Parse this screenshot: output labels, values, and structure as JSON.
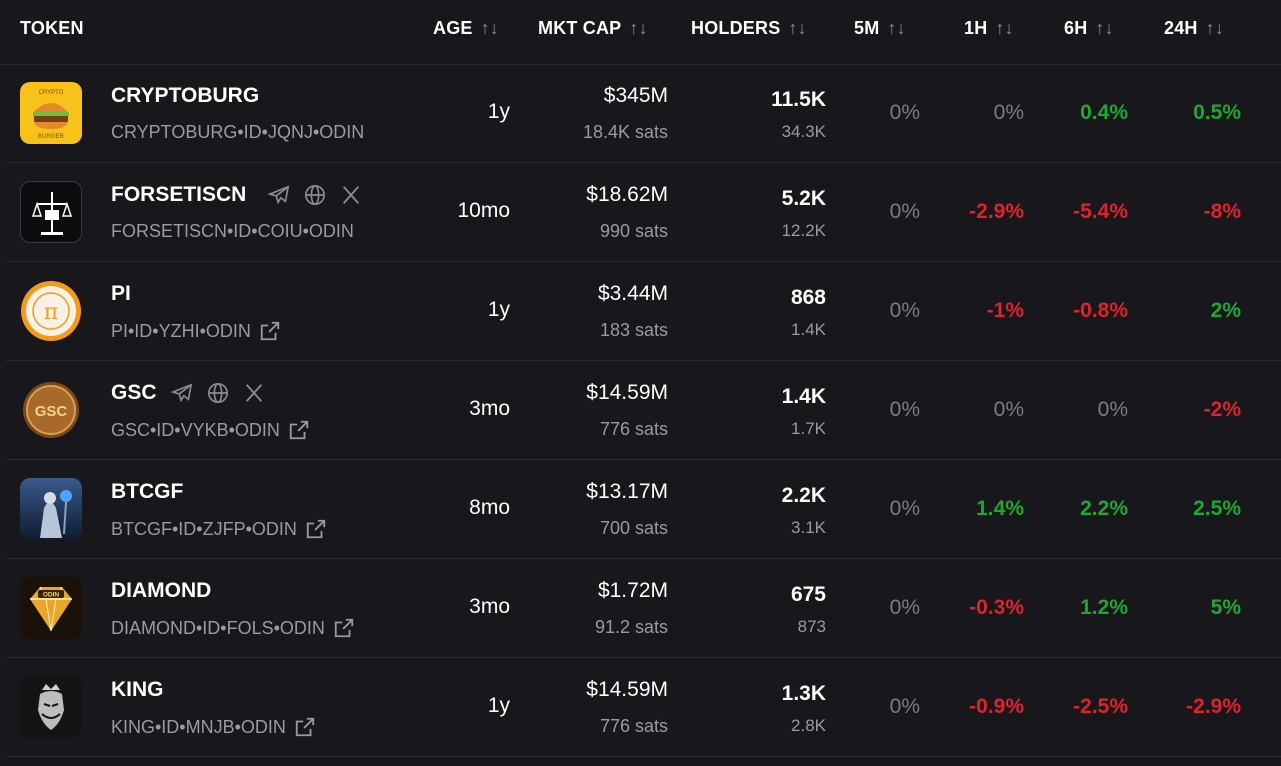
{
  "header": {
    "token": "TOKEN",
    "age": "AGE",
    "mktcap": "MKT CAP",
    "holders": "HOLDERS",
    "m5": "5M",
    "h1": "1H",
    "h6": "6H",
    "h24": "24H",
    "sort_icon": "↑↓"
  },
  "rows": [
    {
      "name": "CRYPTOBURG",
      "id": "CRYPTOBURG•ID•JQNJ•ODIN",
      "age": "1y",
      "mcap": "$345M",
      "sats": "18.4K sats",
      "holders": "11.5K",
      "holders2": "34.3K",
      "m5": "0%",
      "h1": "0%",
      "h6": "0.4%",
      "h24": "0.5%"
    },
    {
      "name": "FORSETISCN",
      "id": "FORSETISCN•ID•COIU•ODIN",
      "age": "10mo",
      "mcap": "$18.62M",
      "sats": "990 sats",
      "holders": "5.2K",
      "holders2": "12.2K",
      "m5": "0%",
      "h1": "-2.9%",
      "h6": "-5.4%",
      "h24": "-8%"
    },
    {
      "name": "PI",
      "id": "PI•ID•YZHI•ODIN",
      "age": "1y",
      "mcap": "$3.44M",
      "sats": "183 sats",
      "holders": "868",
      "holders2": "1.4K",
      "m5": "0%",
      "h1": "-1%",
      "h6": "-0.8%",
      "h24": "2%"
    },
    {
      "name": "GSC",
      "id": "GSC•ID•VYKB•ODIN",
      "age": "3mo",
      "mcap": "$14.59M",
      "sats": "776 sats",
      "holders": "1.4K",
      "holders2": "1.7K",
      "m5": "0%",
      "h1": "0%",
      "h6": "0%",
      "h24": "-2%"
    },
    {
      "name": "BTCGF",
      "id": "BTCGF•ID•ZJFP•ODIN",
      "age": "8mo",
      "mcap": "$13.17M",
      "sats": "700 sats",
      "holders": "2.2K",
      "holders2": "3.1K",
      "m5": "0%",
      "h1": "1.4%",
      "h6": "2.2%",
      "h24": "2.5%"
    },
    {
      "name": "DIAMOND",
      "id": "DIAMOND•ID•FOLS•ODIN",
      "age": "3mo",
      "mcap": "$1.72M",
      "sats": "91.2 sats",
      "holders": "675",
      "holders2": "873",
      "m5": "0%",
      "h1": "-0.3%",
      "h6": "1.2%",
      "h24": "5%"
    },
    {
      "name": "KING",
      "id": "KING•ID•MNJB•ODIN",
      "age": "1y",
      "mcap": "$14.59M",
      "sats": "776 sats",
      "holders": "1.3K",
      "holders2": "2.8K",
      "m5": "0%",
      "h1": "-0.9%",
      "h6": "-2.5%",
      "h24": "-2.9%"
    }
  ],
  "logo_texts": {
    "cryptoburg_top": "CRYPTO",
    "cryptoburg_bottom": "BURGER",
    "gsc": "GSC",
    "diamond": "ODIN",
    "pi": "π"
  },
  "colors": {
    "positive": "#1fa82f",
    "negative": "#e0222a",
    "neutral": "#7b7b83",
    "background": "#17171c"
  }
}
